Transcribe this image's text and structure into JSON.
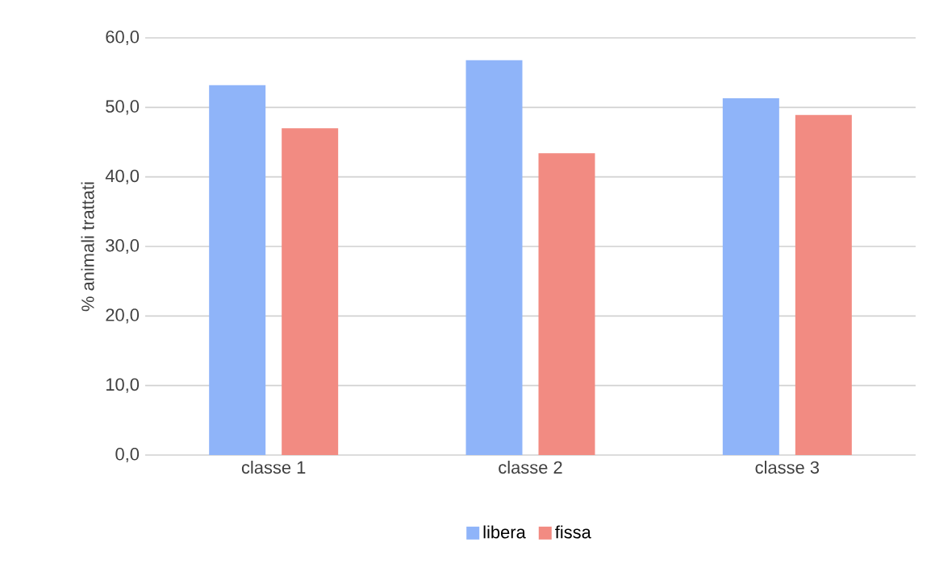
{
  "chart_data": {
    "type": "bar",
    "ylabel": "% animali trattati",
    "categories": [
      "classe 1",
      "classe 2",
      "classe 3"
    ],
    "series": [
      {
        "name": "libera",
        "color": "#8fb4f9",
        "values": [
          53.2,
          56.8,
          51.3
        ]
      },
      {
        "name": "fissa",
        "color": "#f28b82",
        "values": [
          47.0,
          43.4,
          48.9
        ]
      }
    ],
    "ylim": [
      0,
      60
    ],
    "yticks": [
      {
        "value": 0,
        "label": "0,0"
      },
      {
        "value": 10,
        "label": "10,0"
      },
      {
        "value": 20,
        "label": "20,0"
      },
      {
        "value": 30,
        "label": "30,0"
      },
      {
        "value": 40,
        "label": "40,0"
      },
      {
        "value": 50,
        "label": "50,0"
      },
      {
        "value": 60,
        "label": "60,0"
      }
    ],
    "grid": "y",
    "legend": "bottom"
  }
}
